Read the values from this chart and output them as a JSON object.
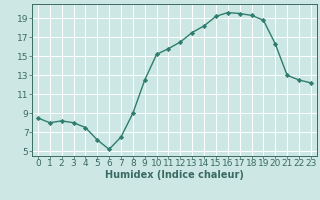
{
  "x": [
    0,
    1,
    2,
    3,
    4,
    5,
    6,
    7,
    8,
    9,
    10,
    11,
    12,
    13,
    14,
    15,
    16,
    17,
    18,
    19,
    20,
    21,
    22,
    23
  ],
  "y": [
    8.5,
    8.0,
    8.2,
    8.0,
    7.5,
    6.2,
    5.2,
    6.5,
    9.0,
    12.5,
    15.2,
    15.8,
    16.5,
    17.5,
    18.2,
    19.2,
    19.6,
    19.5,
    19.3,
    18.8,
    16.3,
    13.0,
    12.5,
    12.2
  ],
  "xlabel": "Humidex (Indice chaleur)",
  "bg_color": "#cde8e4",
  "line_color": "#2e7d6e",
  "marker_color": "#2e7d6e",
  "grid_color": "#ffffff",
  "yticks": [
    5,
    7,
    9,
    11,
    13,
    15,
    17,
    19
  ],
  "xticks": [
    0,
    1,
    2,
    3,
    4,
    5,
    6,
    7,
    8,
    9,
    10,
    11,
    12,
    13,
    14,
    15,
    16,
    17,
    18,
    19,
    20,
    21,
    22,
    23
  ],
  "ylim": [
    4.5,
    20.5
  ],
  "xlim": [
    -0.5,
    23.5
  ],
  "tick_color": "#3a6b62",
  "label_fontsize": 6.5,
  "xlabel_fontsize": 7.0
}
